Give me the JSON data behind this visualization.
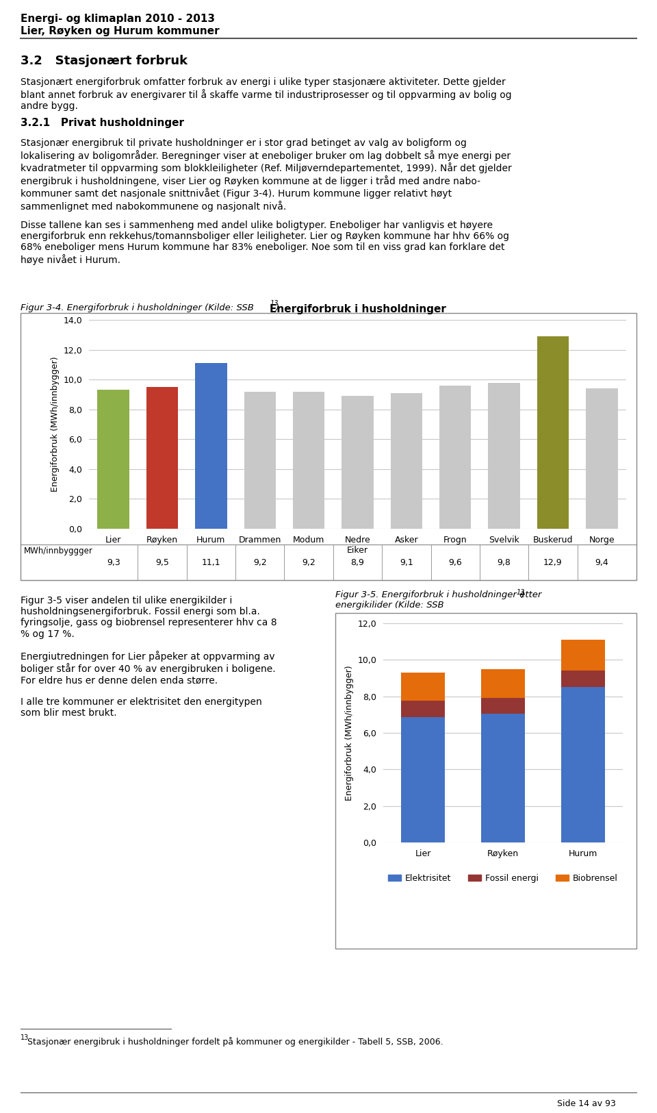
{
  "header_line1": "Energi- og klimaplan 2010 - 2013",
  "header_line2": "Lier, Røyken og Hurum kommuner",
  "section_title": "3.2   Stasjonært forbruk",
  "section_body1": "Stasjonært energiforbruk omfatter forbruk av energi i ulike typer stasjonære aktiviteter. Dette gjelder\nblant annet forbruk av energivarer til å skaffe varme til industriprosesser og til oppvarming av bolig og\nandre bygg.",
  "subsection": "3.2.1   Privat husholdninger",
  "subsection_body": "Stasjonær energibruk til private husholdninger er i stor grad betinget av valg av boligform og\nlokalisering av boligområder. Beregninger viser at eneboliger bruker om lag dobbelt så mye energi per\nkvadratmeter til oppvarming som blokkleiligheter (Ref. Miljøverndepartementet, 1999). Når det gjelder\nenergibruk i husholdningene, viser Lier og Røyken kommune at de ligger i tråd med andre nabo-\nkommuner samt det nasjonale snittnivået (Figur 3-4). Hurum kommune ligger relativt høyt\nsammenlignet med nabokommunene og nasjonalt nivå.",
  "para2": "Disse tallene kan ses i sammenheng med andel ulike boligtyper. Eneboliger har vanligvis et høyere\nenergiforbruk enn rekkehus/tomannsboliger eller leiligheter. Lier og Røyken kommune har hhv 66% og\n68% eneboliger mens Hurum kommune har 83% eneboliger. Noe som til en viss grad kan forklare det\nhøye nivået i Hurum.",
  "fig1_title": "Energiforbruk i husholdninger",
  "fig1_ylabel": "Energiforbruk (MWh/innbygger)",
  "fig1_categories": [
    "Lier",
    "Røyken",
    "Hurum",
    "Drammen",
    "Modum",
    "Nedre\nEiker",
    "Asker",
    "Frogn",
    "Svelvik",
    "Buskerud",
    "Norge"
  ],
  "fig1_values": [
    9.3,
    9.5,
    11.1,
    9.2,
    9.2,
    8.9,
    9.1,
    9.6,
    9.8,
    12.9,
    9.4
  ],
  "fig1_colors": [
    "#8db048",
    "#c0392b",
    "#4472c4",
    "#c8c8c8",
    "#c8c8c8",
    "#c8c8c8",
    "#c8c8c8",
    "#c8c8c8",
    "#c8c8c8",
    "#8b8c2a",
    "#c8c8c8"
  ],
  "fig1_row_label": "MWh/innbyggger",
  "fig1_row_values": [
    "9,3",
    "9,5",
    "11,1",
    "9,2",
    "9,2",
    "8,9",
    "9,1",
    "9,6",
    "9,8",
    "12,9",
    "9,4"
  ],
  "fig1_ylim": [
    0,
    14
  ],
  "fig1_yticks": [
    0.0,
    2.0,
    4.0,
    6.0,
    8.0,
    10.0,
    12.0,
    14.0
  ],
  "fig2_ylabel": "Energiforbruk (MWh/innbygger)",
  "fig2_categories": [
    "Lier",
    "Røyken",
    "Hurum"
  ],
  "fig2_elektrisitet": [
    6.85,
    7.05,
    8.5
  ],
  "fig2_fossil": [
    0.9,
    0.85,
    0.9
  ],
  "fig2_biobrensel": [
    1.55,
    1.6,
    1.7
  ],
  "fig2_color_elektrisitet": "#4472c4",
  "fig2_color_fossil": "#943634",
  "fig2_color_biobrensel": "#e46c0a",
  "fig2_ylim": [
    0,
    12
  ],
  "fig2_yticks": [
    0.0,
    2.0,
    4.0,
    6.0,
    8.0,
    10.0,
    12.0
  ],
  "footnote": "13Stasjonær energibruk i husholdninger fordelt på kommuner og energikilder - Tabell 5, SSB, 2006.",
  "footer_text": "Side 14 av 93",
  "background_color": "#ffffff"
}
